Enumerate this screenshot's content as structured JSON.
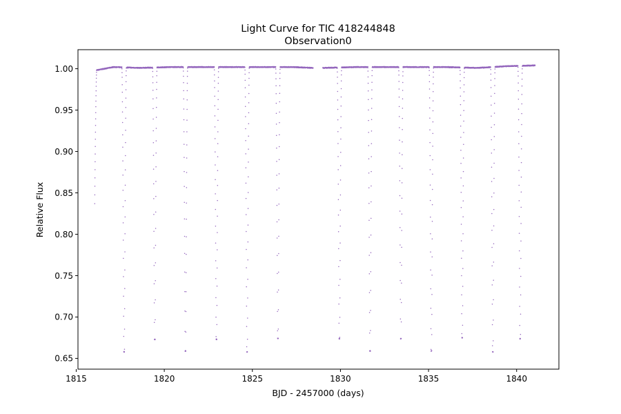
{
  "chart_data": {
    "type": "scatter",
    "title": "Light Curve for TIC 418244848",
    "subtitle": "Observation0",
    "xlabel": "BJD - 2457000 (days)",
    "ylabel": "Relative Flux",
    "xlim": [
      1815.1,
      1842.4
    ],
    "ylim": [
      0.637,
      1.023
    ],
    "x_ticks": [
      1815,
      1820,
      1825,
      1830,
      1835,
      1840
    ],
    "y_ticks": [
      0.65,
      0.7,
      0.75,
      0.8,
      0.85,
      0.9,
      0.95,
      1.0
    ],
    "y_tick_labels": [
      "0.65",
      "0.70",
      "0.75",
      "0.80",
      "0.85",
      "0.90",
      "0.95",
      "1.00"
    ],
    "grid": false,
    "marker_color": "#9467bd",
    "observation_segments": [
      [
        1816.05,
        1828.45
      ],
      [
        1829.0,
        1841.05
      ]
    ],
    "eclipses": [
      {
        "center": 1817.72,
        "min_flux": 0.658
      },
      {
        "center": 1819.46,
        "min_flux": 0.673
      },
      {
        "center": 1821.2,
        "min_flux": 0.659
      },
      {
        "center": 1822.96,
        "min_flux": 0.673
      },
      {
        "center": 1824.7,
        "min_flux": 0.658
      },
      {
        "center": 1826.45,
        "min_flux": 0.674
      },
      {
        "center": 1829.94,
        "min_flux": 0.674
      },
      {
        "center": 1831.68,
        "min_flux": 0.659
      },
      {
        "center": 1833.43,
        "min_flux": 0.674
      },
      {
        "center": 1835.16,
        "min_flux": 0.659
      },
      {
        "center": 1836.91,
        "min_flux": 0.675
      },
      {
        "center": 1838.65,
        "min_flux": 0.658
      },
      {
        "center": 1840.2,
        "min_flux": 0.674
      }
    ],
    "truncated_start": {
      "x": 1816.05,
      "flux": 0.837
    },
    "baseline_flux": [
      {
        "x": 1816.1,
        "flux": 0.998
      },
      {
        "x": 1817.1,
        "flux": 1.002
      },
      {
        "x": 1818.6,
        "flux": 1.001
      },
      {
        "x": 1820.3,
        "flux": 1.002
      },
      {
        "x": 1822.0,
        "flux": 1.002
      },
      {
        "x": 1823.8,
        "flux": 1.002
      },
      {
        "x": 1825.6,
        "flux": 1.002
      },
      {
        "x": 1827.3,
        "flux": 1.002
      },
      {
        "x": 1828.4,
        "flux": 1.001
      },
      {
        "x": 1829.0,
        "flux": 1.001
      },
      {
        "x": 1830.8,
        "flux": 1.002
      },
      {
        "x": 1832.5,
        "flux": 1.002
      },
      {
        "x": 1834.2,
        "flux": 1.002
      },
      {
        "x": 1836.0,
        "flux": 1.002
      },
      {
        "x": 1837.8,
        "flux": 1.001
      },
      {
        "x": 1839.4,
        "flux": 1.003
      },
      {
        "x": 1841.0,
        "flux": 1.004
      }
    ]
  }
}
